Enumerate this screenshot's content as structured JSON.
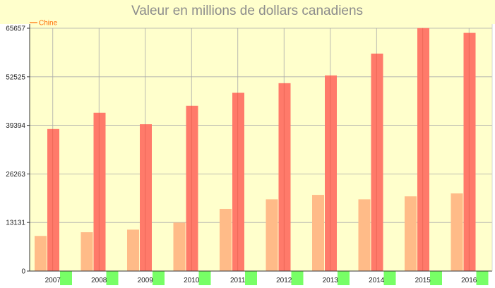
{
  "chart_data": {
    "type": "bar",
    "title": "Valeur en millions de dollars canadiens",
    "xlabel": "",
    "ylabel": "",
    "categories": [
      "2007",
      "2008",
      "2009",
      "2010",
      "2011",
      "2012",
      "2013",
      "2014",
      "2015",
      "2016"
    ],
    "yticks": [
      "0",
      "13131",
      "26263",
      "39394",
      "52525",
      "65657"
    ],
    "ylim": [
      0,
      65657
    ],
    "grid": true,
    "legend": {
      "position": "top-left",
      "entries": [
        "Chine"
      ]
    },
    "series": [
      {
        "name": "",
        "color": "#ffbb88",
        "values": [
          9500,
          10500,
          11200,
          13100,
          16800,
          19400,
          20600,
          19400,
          20200,
          21000
        ]
      },
      {
        "name": "Chine",
        "color": "#ff7a6a",
        "values": [
          38400,
          42800,
          39700,
          44700,
          48200,
          50800,
          52900,
          58800,
          65700,
          64400
        ]
      },
      {
        "name": "",
        "color": "#77ff66",
        "values": [
          3900,
          3900,
          3900,
          3900,
          3900,
          3900,
          3900,
          3900,
          3900,
          3900
        ]
      }
    ]
  },
  "colors": {
    "plot_background": "#ffffcc",
    "grid": "#aaaaaa",
    "axis": "#333333",
    "title": "#8c8c8c",
    "legend_text": "#ff6a00"
  }
}
